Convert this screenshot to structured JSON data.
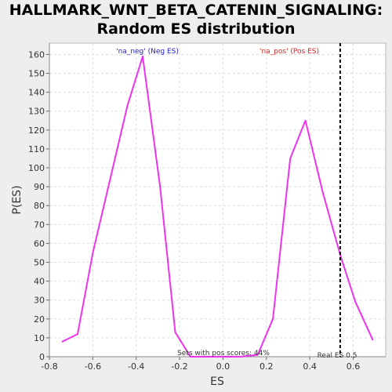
{
  "chart_data": {
    "type": "line",
    "title_line1": "HALLMARK_WNT_BETA_CATENIN_SIGNALING:",
    "title_line2": "Random ES distribution",
    "xlabel": "ES",
    "ylabel": "P(ES)",
    "xlim": [
      -0.8,
      0.75
    ],
    "ylim": [
      0,
      166
    ],
    "xticks": [
      -0.8,
      -0.6,
      -0.4,
      -0.2,
      0.0,
      0.2,
      0.4,
      0.6
    ],
    "xtick_labels": [
      "-0.8",
      "-0.6",
      "-0.4",
      "-0.2",
      "0.0",
      "0.2",
      "0.4",
      "0.6"
    ],
    "yticks": [
      0,
      10,
      20,
      30,
      40,
      50,
      60,
      70,
      80,
      90,
      100,
      110,
      120,
      130,
      140,
      150,
      160
    ],
    "ytick_labels": [
      "0",
      "10",
      "20",
      "30",
      "40",
      "50",
      "60",
      "70",
      "80",
      "90",
      "100",
      "110",
      "120",
      "130",
      "140",
      "150",
      "160"
    ],
    "grid": true,
    "series": [
      {
        "color": "#ee33ee",
        "x": [
          -0.74,
          -0.67,
          -0.6,
          -0.52,
          -0.44,
          -0.37,
          -0.29,
          -0.22,
          -0.15,
          -0.08,
          0.0,
          0.08,
          0.16,
          0.23,
          0.31,
          0.38,
          0.46,
          0.54,
          0.61,
          0.69
        ],
        "y": [
          8,
          12,
          55,
          94,
          133,
          159,
          90,
          13,
          0,
          0,
          0,
          0,
          1,
          20,
          105,
          125,
          87,
          54,
          29,
          9
        ]
      }
    ],
    "real_es": 0.54,
    "annotations": {
      "neg": "'na_neg' (Neg ES)",
      "pos": "'na_pos' (Pos ES)",
      "sets_pos": "Sets with pos scores: 44%",
      "real_es_label": "Real ES 0.5"
    },
    "colors": {
      "neg": "#2222cc",
      "pos": "#dd2222",
      "line": "#ee33ee",
      "real_es_line": "#000000"
    }
  }
}
